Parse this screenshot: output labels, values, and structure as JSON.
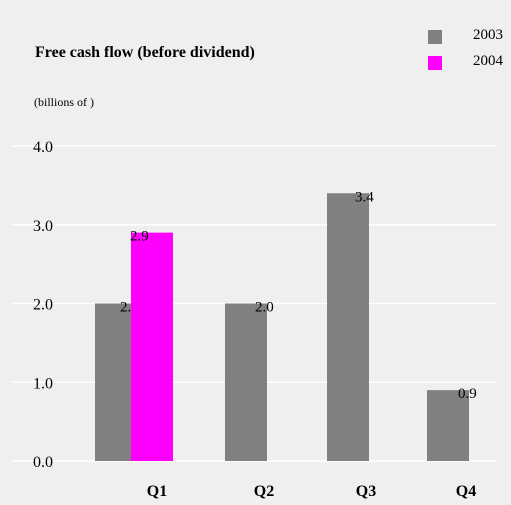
{
  "colors": {
    "background": "#efefef",
    "grid": "#ffffff",
    "series_2003": "#808080",
    "series_2004": "#ff00ff",
    "text": "#000000"
  },
  "chart_data": {
    "type": "bar",
    "title": "Free cash flow (before dividend)",
    "unit_label": "(billions of   )",
    "categories": [
      "Q1",
      "Q2",
      "Q3",
      "Q4"
    ],
    "series": [
      {
        "name": "2003",
        "values": [
          2.0,
          2.0,
          3.4,
          0.9
        ],
        "labels": [
          "2.0",
          "2.0",
          "3.4",
          "0.9"
        ]
      },
      {
        "name": "2004",
        "values": [
          2.9,
          null,
          null,
          null
        ],
        "labels": [
          "2.9",
          null,
          null,
          null
        ]
      }
    ],
    "ylim": [
      0,
      4
    ],
    "yticks": [
      "0.0",
      "1.0",
      "2.0",
      "3.0",
      "4.0"
    ],
    "grid": true,
    "legend_position": "top-right"
  }
}
